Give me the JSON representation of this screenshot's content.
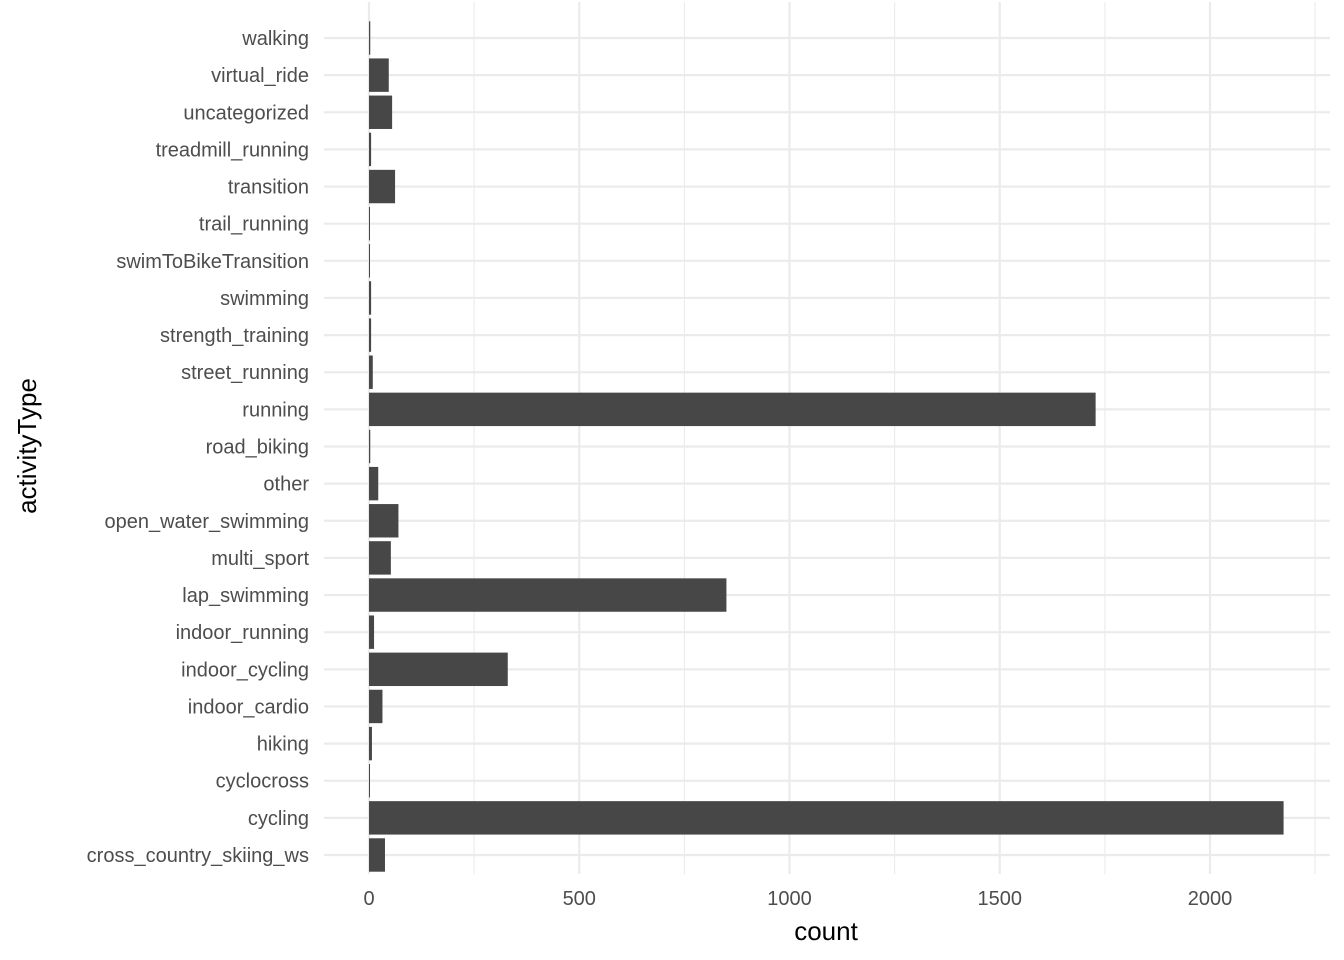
{
  "chart_data": {
    "type": "bar",
    "orientation": "horizontal",
    "title": "",
    "xlabel": "count",
    "ylabel": "activityType",
    "xlim": [
      -105,
      2255
    ],
    "x_ticks": [
      0,
      500,
      1000,
      1500,
      2000
    ],
    "x_tick_labels": [
      "0",
      "500",
      "1000",
      "1500",
      "2000"
    ],
    "grid": true,
    "legend": "none",
    "bar_color": "#474747",
    "grid_color": "#ebebeb",
    "categories": [
      "cross_country_skiing_ws",
      "cycling",
      "cyclocross",
      "hiking",
      "indoor_cardio",
      "indoor_cycling",
      "indoor_running",
      "lap_swimming",
      "multi_sport",
      "open_water_swimming",
      "other",
      "road_biking",
      "running",
      "street_running",
      "strength_training",
      "swimming",
      "swimToBikeTransition",
      "trail_running",
      "transition",
      "treadmill_running",
      "uncategorized",
      "virtual_ride",
      "walking"
    ],
    "values": [
      38,
      2175,
      2,
      7,
      32,
      330,
      12,
      850,
      52,
      70,
      22,
      3,
      1728,
      9,
      5,
      5,
      1,
      1,
      62,
      5,
      55,
      47,
      3
    ]
  }
}
